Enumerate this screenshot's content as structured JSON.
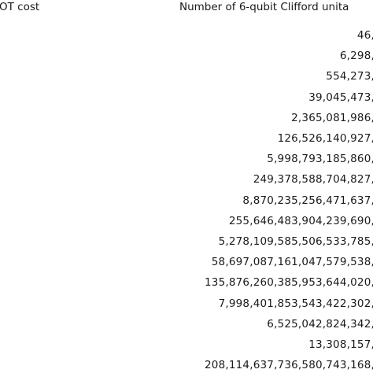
{
  "table": {
    "header": [
      "OT cost",
      "Number of 6-qubit Clifford unita"
    ],
    "rows": [
      "46,",
      "6,298,",
      "554,273,",
      "39,045,473,",
      "2,365,081,986,",
      "126,526,140,927,",
      "5,998,793,185,860,",
      "249,378,588,704,827,",
      "8,870,235,256,471,637,",
      "255,646,483,904,239,690,",
      "5,278,109,585,506,533,785,",
      "58,697,087,161,047,579,538,",
      "135,876,260,385,953,644,020,",
      "7,998,401,853,543,422,302,",
      "6,525,042,824,342,",
      "13,308,157,",
      "208,114,637,736,580,743,168,"
    ]
  }
}
